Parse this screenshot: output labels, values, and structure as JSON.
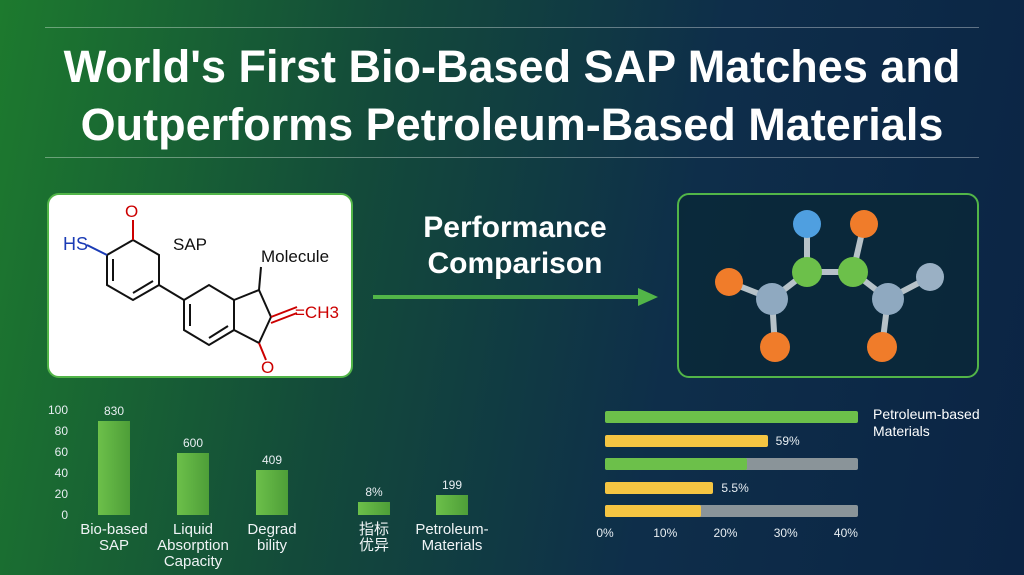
{
  "header": {
    "title": "World's First Bio-Based SAP Matches and\nOutperforms Petroleum-Based Materials"
  },
  "left_panel": {
    "labels": [
      "HS",
      "O",
      "SAP",
      "Molecule",
      "=CH3",
      "O"
    ]
  },
  "center": {
    "label": "Performance\nComparison"
  },
  "chart_data": [
    {
      "type": "bar",
      "categories": [
        "Bio-based\nSAP",
        "Liquid\nAbsorption\nCapacity",
        "Degrad\nbility",
        "指标\n优异",
        "Petroleum-\nMaterials"
      ],
      "values": [
        90,
        59,
        43,
        12,
        19
      ],
      "annotations": [
        "830",
        "600",
        "409",
        "8%",
        "199"
      ],
      "color": "#6cc04a",
      "ylim": [
        0,
        100
      ],
      "yticks": [
        0,
        20,
        40,
        60,
        80,
        100
      ]
    },
    {
      "type": "hbar",
      "values": [
        42,
        27,
        23.5,
        18,
        16
      ],
      "colors": [
        "#6cc04a",
        "#f5c542",
        "#6cc04a",
        "#f5c542",
        "#f5c542"
      ],
      "tracks": [
        false,
        false,
        true,
        false,
        true
      ],
      "track_color": "#8a9499",
      "annotations": [
        null,
        "59%",
        null,
        "5.5%",
        null
      ],
      "legend": "Petroleum-based\nMaterials",
      "xlim": [
        0,
        42
      ],
      "xticks": [
        {
          "value": 0,
          "label": "0%"
        },
        {
          "value": 10,
          "label": "10%"
        },
        {
          "value": 20,
          "label": "20%"
        },
        {
          "value": 30,
          "label": "30%"
        },
        {
          "value": 40,
          "label": "40%"
        }
      ]
    }
  ]
}
